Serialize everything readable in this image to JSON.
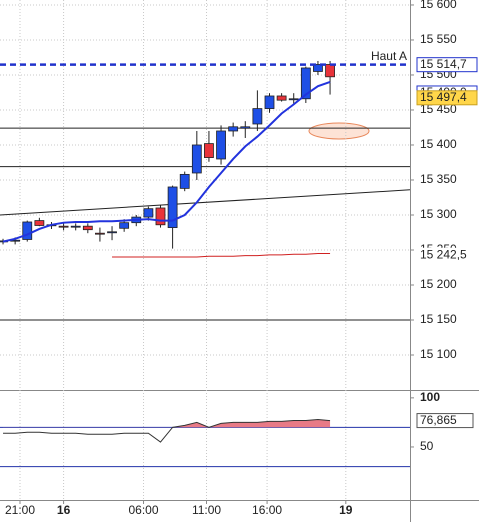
{
  "chart_data": {
    "type": "candlestick",
    "x": [
      0,
      1,
      2,
      3,
      4,
      5,
      6,
      7,
      8,
      9,
      10,
      11,
      12,
      13,
      14,
      15,
      16,
      17,
      18,
      19,
      20,
      21,
      22,
      23,
      24,
      25,
      26,
      27
    ],
    "open": [
      15262,
      15263,
      15265,
      15292,
      15285,
      15284,
      15283,
      15284,
      15274,
      15275,
      15281,
      15289,
      15297,
      15310,
      15282,
      15338,
      15360,
      15402,
      15380,
      15420,
      15424,
      15430,
      15452,
      15470,
      15466,
      15466,
      15505,
      15515
    ],
    "high": [
      15266,
      15268,
      15292,
      15296,
      15290,
      15290,
      15288,
      15288,
      15282,
      15284,
      15294,
      15300,
      15312,
      15314,
      15342,
      15362,
      15420,
      15420,
      15428,
      15432,
      15434,
      15478,
      15474,
      15474,
      15474,
      15512,
      15520,
      15520
    ],
    "low": [
      15258,
      15258,
      15262,
      15284,
      15280,
      15278,
      15278,
      15274,
      15262,
      15264,
      15276,
      15284,
      15292,
      15282,
      15252,
      15334,
      15350,
      15376,
      15372,
      15412,
      15410,
      15420,
      15446,
      15462,
      15458,
      15460,
      15500,
      15472
    ],
    "close": [
      15263,
      15264,
      15290,
      15285,
      15286,
      15283,
      15284,
      15279,
      15273,
      15276,
      15289,
      15297,
      15309,
      15286,
      15340,
      15358,
      15400,
      15382,
      15420,
      15426,
      15426,
      15452,
      15470,
      15464,
      15466,
      15510,
      15515,
      15497.4
    ],
    "up_color": "#1e4fe6",
    "down_color": "#e8333a",
    "xlim": [
      -0.25,
      33.6
    ],
    "xticks": [
      {
        "value": 1.4,
        "label": "21:00"
      },
      {
        "value": 5,
        "label": "16"
      },
      {
        "value": 11.6,
        "label": "06:00"
      },
      {
        "value": 16.8,
        "label": "11:00"
      },
      {
        "value": 21.8,
        "label": "16:00"
      },
      {
        "value": 28.3,
        "label": "19"
      }
    ],
    "ylim": [
      15050,
      15607.1
    ],
    "yticks": [
      {
        "value": 15600,
        "label": "15 600"
      },
      {
        "value": 15550,
        "label": "15 550"
      },
      {
        "value": 15500,
        "label": "15 500"
      },
      {
        "value": 15450,
        "label": "15 450"
      },
      {
        "value": 15400,
        "label": "15 400"
      },
      {
        "value": 15350,
        "label": "15 350"
      },
      {
        "value": 15300,
        "label": "15 300"
      },
      {
        "value": 15250,
        "label": "15 250"
      },
      {
        "value": 15200,
        "label": "15 200"
      },
      {
        "value": 15150,
        "label": "15 150"
      },
      {
        "value": 15100,
        "label": "15 100"
      }
    ],
    "grid": true,
    "moving_average": {
      "color": "#2233dd",
      "values": [
        15262,
        15266,
        15272,
        15280,
        15286,
        15289,
        15290,
        15290,
        15291,
        15291,
        15292,
        15293,
        15294,
        15292,
        15292,
        15300,
        15318,
        15340,
        15360,
        15380,
        15398,
        15412,
        15428,
        15445,
        15458,
        15472,
        15484,
        15490
      ]
    },
    "red_line": {
      "color": "#d02020",
      "values": [
        null,
        null,
        null,
        null,
        null,
        null,
        null,
        null,
        null,
        15240,
        15240,
        15240,
        15240,
        15240,
        15240,
        15240,
        15240,
        15241,
        15241,
        15241,
        15242,
        15242,
        15243,
        15243,
        15244,
        15244,
        15245,
        15245
      ]
    },
    "trend_line": {
      "x": [
        -0.25,
        33.6
      ],
      "values": [
        15300,
        15336
      ]
    },
    "levels": [
      15424,
      15369,
      15150
    ],
    "high_line": {
      "value": 15514.7,
      "name": "Haut A",
      "color": "#2233cc"
    },
    "price_labels": [
      {
        "value": 15514.7,
        "label": "15 514,7",
        "style": "outline"
      },
      {
        "value": 15490,
        "label": "15 490,0",
        "style": "outline"
      },
      {
        "value": 15497.4,
        "label": "15 497,4",
        "style": "yellow"
      },
      {
        "value": 15242.5,
        "label": "15 242,5",
        "style": "red"
      }
    ],
    "indicator": {
      "ylim": [
        -4,
        108
      ],
      "yticks": [
        100,
        50
      ],
      "levels": [
        70,
        30
      ],
      "values": [
        64,
        64,
        65,
        65,
        64,
        64,
        64,
        63,
        63,
        63,
        64,
        64,
        64,
        55,
        70,
        72,
        75,
        70,
        74,
        75,
        75,
        75,
        76,
        76,
        77,
        77,
        78,
        76.865
      ],
      "last_label": "76,865"
    }
  }
}
